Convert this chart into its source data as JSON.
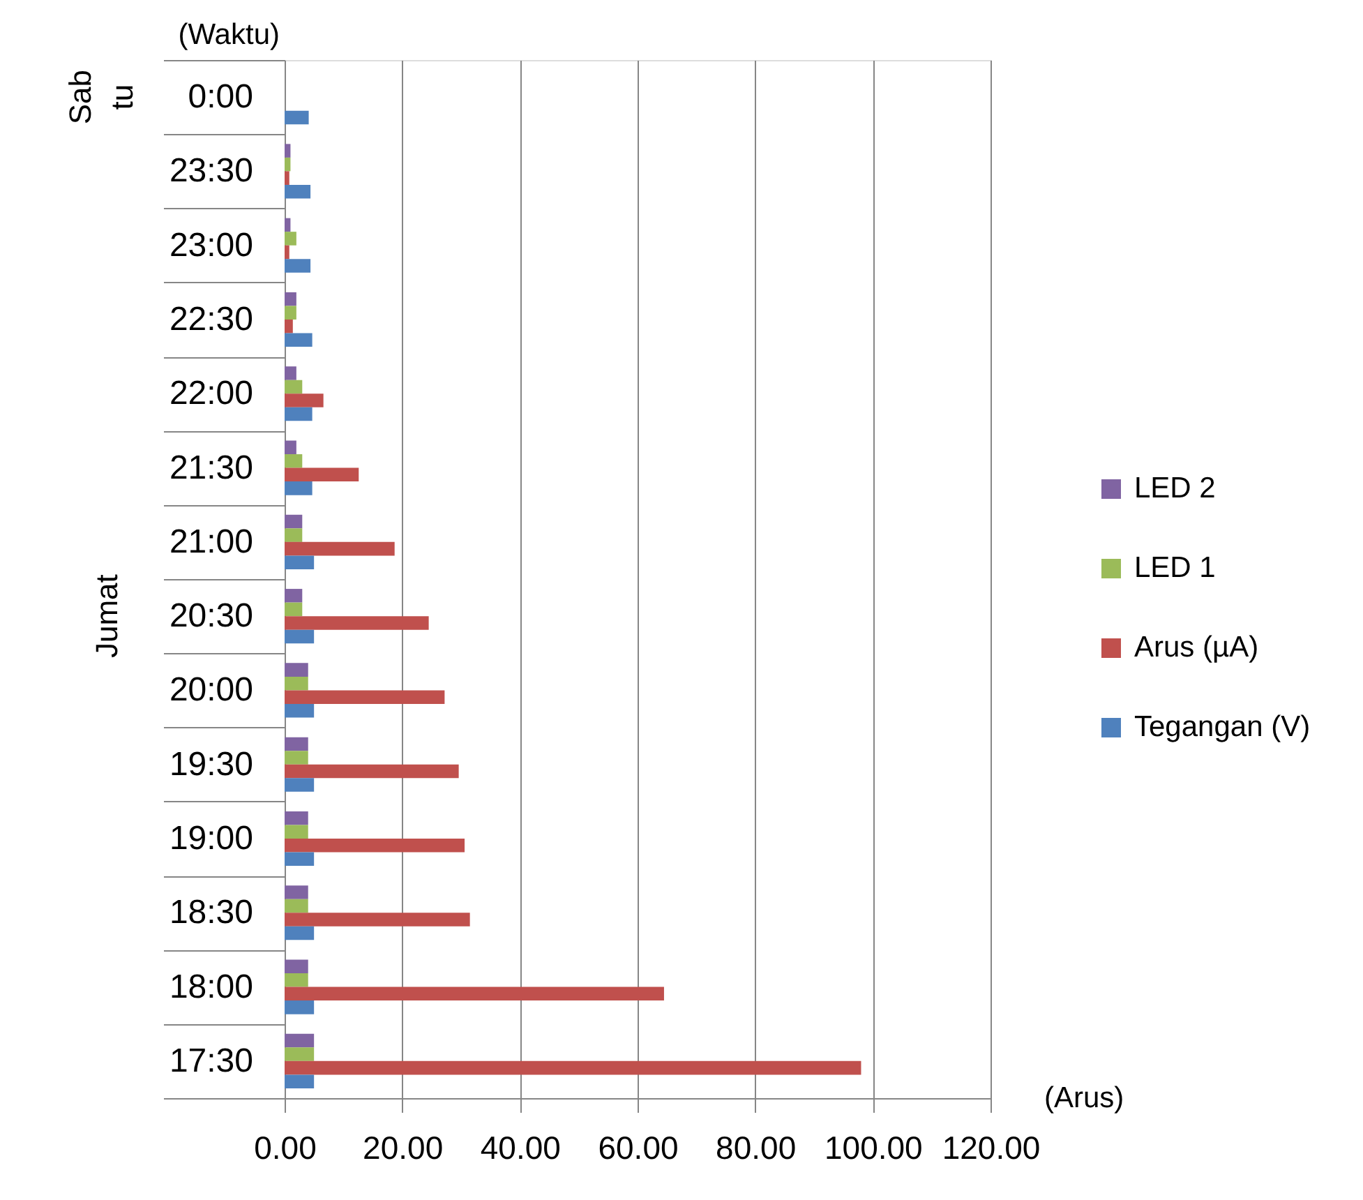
{
  "chart_data": {
    "type": "bar",
    "orientation": "horizontal",
    "xlabel": "(Arus)",
    "ylabel": "(Waktu)",
    "categories": [
      "0:00",
      "23:30",
      "23:00",
      "22:30",
      "22:00",
      "21:30",
      "21:00",
      "20:30",
      "20:00",
      "19:30",
      "19:00",
      "18:30",
      "18:00",
      "17:30"
    ],
    "series": [
      {
        "name": "LED 2",
        "color": "#8064a2",
        "values": [
          null,
          1,
          1,
          2,
          2,
          2,
          3,
          3,
          4,
          4,
          4,
          4,
          4,
          5
        ]
      },
      {
        "name": "LED 1",
        "color": "#9bbb59",
        "values": [
          null,
          1,
          2,
          2,
          3,
          3,
          3,
          3,
          4,
          4,
          4,
          4,
          4,
          5
        ]
      },
      {
        "name": "Arus (µA)",
        "color": "#c0504d",
        "values": [
          null,
          0.8,
          0.8,
          1.4,
          6.6,
          12.6,
          18.7,
          24.5,
          27.2,
          29.6,
          30.6,
          31.5,
          64.5,
          98.0
        ]
      },
      {
        "name": "Tegangan (V)",
        "color": "#4f81bd",
        "values": [
          4.1,
          4.4,
          4.4,
          4.7,
          4.7,
          4.7,
          5.0,
          5.0,
          5.0,
          5.0,
          5.0,
          5.0,
          5.0,
          5.0
        ]
      }
    ],
    "xlim": [
      0,
      120
    ],
    "xticks": [
      {
        "value": 0,
        "label": "0.00"
      },
      {
        "value": 20,
        "label": "20.00"
      },
      {
        "value": 40,
        "label": "40.00"
      },
      {
        "value": 60,
        "label": "60.00"
      },
      {
        "value": 80,
        "label": "80.00"
      },
      {
        "value": 100,
        "label": "100.00"
      },
      {
        "value": 120,
        "label": "120.00"
      }
    ],
    "grid": "x",
    "legend": "right",
    "annotations": [
      "Sab\ntu",
      "Jumat"
    ]
  }
}
